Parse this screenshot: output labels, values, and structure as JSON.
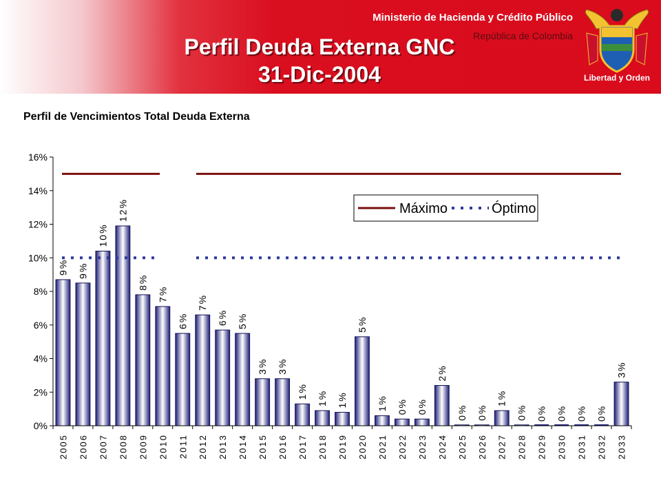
{
  "header": {
    "ministry": "Ministerio de Hacienda y Crédito Público",
    "republic": "República de Colombia",
    "title": "Perfil Deuda Externa GNC",
    "date": "31-Dic-2004",
    "emblem_motto": "Libertad y Orden"
  },
  "chart_heading": "Perfil de Vencimientos Total Deuda Externa",
  "colors": {
    "banner_red": "#d90b1c",
    "bar_dark": "#1f1f7a",
    "bar_light": "#ffffff",
    "max_line": "#7a0f0f",
    "opt_line": "#2e3a9e"
  },
  "chart_data": {
    "type": "bar",
    "categories": [
      "2005",
      "2006",
      "2007",
      "2008",
      "2009",
      "2010",
      "2011",
      "2012",
      "2013",
      "2014",
      "2015",
      "2016",
      "2017",
      "2018",
      "2019",
      "2020",
      "2021",
      "2022",
      "2023",
      "2024",
      "2025",
      "2026",
      "2027",
      "2028",
      "2029",
      "2030",
      "2031",
      "2032",
      "2033"
    ],
    "values": [
      8.7,
      8.5,
      10.4,
      11.9,
      7.8,
      7.1,
      5.5,
      6.6,
      5.7,
      5.5,
      2.8,
      2.8,
      1.3,
      0.9,
      0.8,
      5.3,
      0.6,
      0.4,
      0.4,
      2.4,
      0.05,
      0.05,
      0.9,
      0.05,
      0,
      0,
      0,
      0,
      2.6
    ],
    "data_labels": [
      "9%",
      "9%",
      "10%",
      "12%",
      "8%",
      "7%",
      "6%",
      "7%",
      "6%",
      "5%",
      "3%",
      "3%",
      "1%",
      "1%",
      "1%",
      "5%",
      "1%",
      "0%",
      "0%",
      "2%",
      "0%",
      "0%",
      "1%",
      "0%",
      "0%",
      "0%",
      "0%",
      "0%",
      "3%"
    ],
    "yticks": [
      "0%",
      "2%",
      "4%",
      "6%",
      "8%",
      "10%",
      "12%",
      "14%",
      "16%"
    ],
    "ylim": [
      0,
      16
    ],
    "grid": false,
    "legend": [
      "Máximo",
      "Óptimo"
    ],
    "legend_position": "upper-right",
    "reference_lines": [
      {
        "name": "Máximo",
        "value": 15,
        "style": "solid"
      },
      {
        "name": "Óptimo",
        "value": 10,
        "style": "dotted"
      }
    ],
    "xlabel": "",
    "ylabel": ""
  }
}
